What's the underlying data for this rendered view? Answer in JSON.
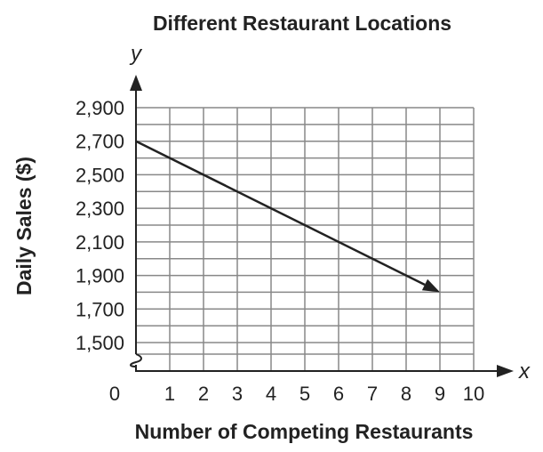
{
  "chart_data": {
    "type": "line",
    "title": "Different Restaurant Locations",
    "xlabel": "Number of Competing Restaurants",
    "ylabel": "Daily Sales ($)",
    "x_axis_var": "x",
    "y_axis_var": "y",
    "xlim": [
      0,
      10
    ],
    "ylim": [
      1500,
      2900
    ],
    "x_ticks": [
      "0",
      "1",
      "2",
      "3",
      "4",
      "5",
      "6",
      "7",
      "8",
      "9",
      "10"
    ],
    "y_ticks": [
      "1,500",
      "1,700",
      "1,900",
      "2,100",
      "2,300",
      "2,500",
      "2,700",
      "2,900"
    ],
    "y_axis_break": true,
    "grid": true,
    "series": [
      {
        "x": [
          0,
          9
        ],
        "y": [
          2700,
          1800
        ],
        "arrow_end": true
      }
    ]
  }
}
